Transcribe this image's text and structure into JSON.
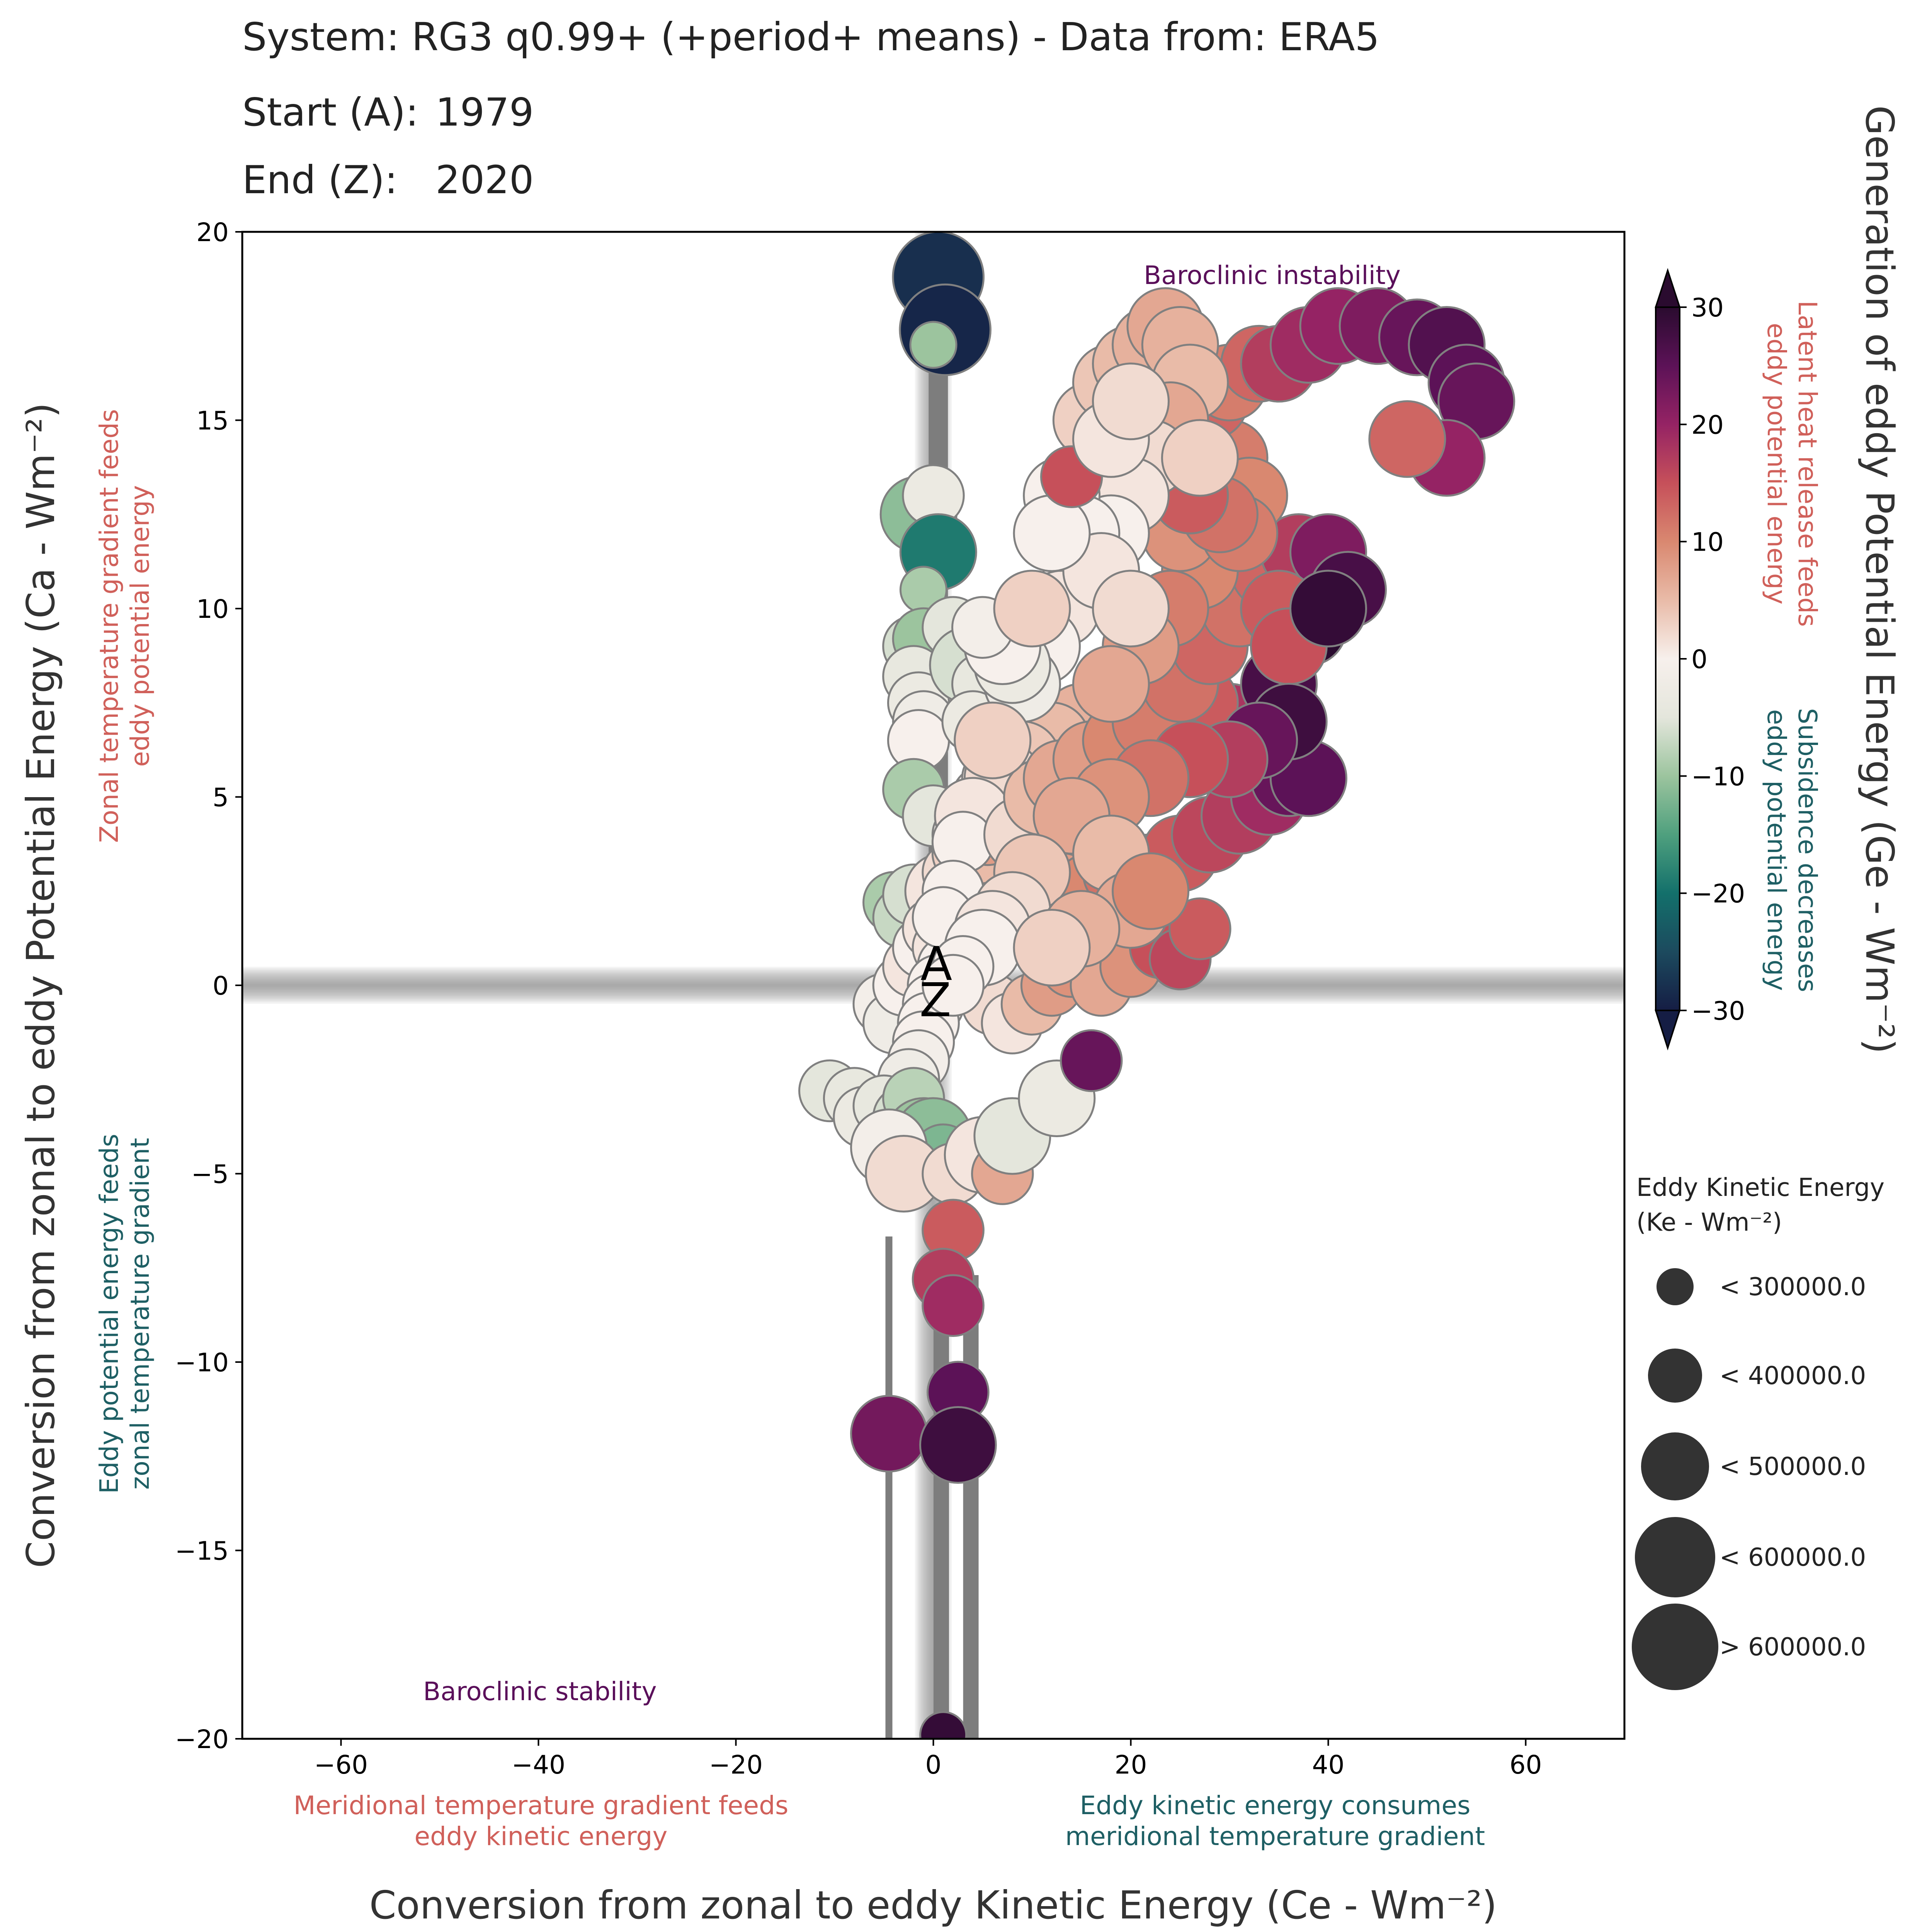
{
  "header": {
    "title": "System: RG3 q0.99+ (+period+ means) - Data from: ERA5",
    "start_label": "Start (A):",
    "start_value": "1979",
    "end_label": "End (Z):",
    "end_value": "2020"
  },
  "colors": {
    "accent_red": "#d0605a",
    "accent_teal": "#1e5f64",
    "purple": "#5a0f5a",
    "axis": "#000000",
    "marker_edge": "#808080"
  },
  "annotations": {
    "top": "Baroclinic instability",
    "bottom": "Baroclinic stability",
    "left_upper": [
      "Zonal temperature gradient feeds",
      "eddy potential energy"
    ],
    "left_lower": [
      "Eddy potential energy feeds",
      "zonal temperature gradient"
    ],
    "bottom_left": [
      "Meridional temperature gradient feeds",
      "eddy kinetic energy"
    ],
    "bottom_right": [
      "Eddy kinetic energy consumes",
      "meridional temperature gradient"
    ],
    "cbar_upper": [
      "Latent heat release feeds",
      "eddy potential energy"
    ],
    "cbar_lower": [
      "Subsidence decreases",
      "eddy potential energy"
    ]
  },
  "chart_data": {
    "type": "scatter",
    "xlabel": "Conversion from zonal to eddy Kinetic Energy (Ce - Wm⁻²)",
    "ylabel": "Conversion from zonal to eddy Potential Energy (Ca - Wm⁻²)",
    "xlim": [
      -70,
      70
    ],
    "ylim": [
      -20,
      20
    ],
    "xticks": [
      -60,
      -40,
      -20,
      0,
      20,
      40,
      60
    ],
    "yticks": [
      -20,
      -15,
      -10,
      -5,
      0,
      5,
      10,
      15,
      20
    ],
    "colorbar": {
      "label": "Generation of eddy Potential Energy (Ge - Wm⁻²)",
      "min": -30,
      "max": 30,
      "ticks": [
        -30,
        -20,
        -10,
        0,
        10,
        20,
        30
      ],
      "stops": [
        "#151d44",
        "#1c4a5e",
        "#13706b",
        "#4fa07e",
        "#9cc49e",
        "#e4e6dc",
        "#f7f0ec",
        "#e9bba8",
        "#d98870",
        "#c6505a",
        "#952364",
        "#5c1257",
        "#2a0b2f"
      ]
    },
    "size_legend": {
      "title": "Eddy Kinetic Energy",
      "subtitle": "(Ke - Wm⁻²)",
      "entries": [
        "< 300000.0",
        "< 400000.0",
        "< 500000.0",
        "< 600000.0",
        "> 600000.0"
      ]
    },
    "markers": {
      "start": "A",
      "end": "Z",
      "start_xy": [
        0.3,
        0.3
      ],
      "end_xy": [
        0.2,
        -0.1
      ]
    },
    "series": [
      {
        "points": [
          [
            0.5,
            18.8,
            -28,
            3
          ],
          [
            1.2,
            17.4,
            -29,
            3
          ],
          [
            0.0,
            17.0,
            -10,
            0
          ],
          [
            -1.5,
            12.5,
            -11,
            2
          ],
          [
            0.0,
            13.0,
            -3,
            1
          ],
          [
            0.5,
            11.5,
            -19,
            2
          ],
          [
            -1.0,
            10.5,
            -9,
            0
          ],
          [
            -2.0,
            9.0,
            -6,
            1
          ],
          [
            -1.0,
            9.2,
            -10,
            1
          ],
          [
            2.0,
            9.5,
            -5,
            1
          ],
          [
            -2.0,
            8.2,
            -4,
            1
          ],
          [
            -1.5,
            7.5,
            -3,
            1
          ],
          [
            -1.0,
            7.0,
            -2,
            1
          ],
          [
            -1.5,
            6.5,
            0,
            1
          ],
          [
            3.5,
            8.5,
            -6,
            2
          ],
          [
            5.0,
            8.0,
            -4,
            1
          ],
          [
            4.0,
            7.0,
            -3,
            1
          ],
          [
            -2.0,
            5.2,
            -9,
            1
          ],
          [
            0.0,
            4.5,
            -5,
            1
          ],
          [
            3.0,
            4.0,
            -2,
            1
          ],
          [
            5.0,
            5.0,
            0,
            1
          ],
          [
            6.0,
            5.5,
            1,
            1
          ],
          [
            7.0,
            4.5,
            2,
            1
          ],
          [
            -4.0,
            2.2,
            -9,
            1
          ],
          [
            -3.0,
            1.8,
            -7,
            1
          ],
          [
            -2.0,
            2.4,
            -6,
            1
          ],
          [
            1.0,
            2.5,
            1,
            2
          ],
          [
            2.0,
            3.0,
            2,
            1
          ],
          [
            3.0,
            3.5,
            3,
            1
          ],
          [
            4.5,
            3.5,
            5,
            1
          ],
          [
            5.5,
            4.0,
            8,
            1
          ],
          [
            -5.0,
            -0.5,
            -1,
            1
          ],
          [
            -4.0,
            -1.0,
            -2,
            1
          ],
          [
            -3.0,
            0.0,
            0,
            1
          ],
          [
            -2.0,
            0.5,
            1,
            1
          ],
          [
            -1.0,
            1.0,
            0,
            1
          ],
          [
            0.0,
            1.5,
            1,
            1
          ],
          [
            1.0,
            1.0,
            1,
            1
          ],
          [
            1.5,
            0.5,
            0,
            1
          ],
          [
            0.5,
            0.0,
            0,
            1
          ],
          [
            0.0,
            -0.5,
            0,
            1
          ],
          [
            -0.5,
            -1.0,
            0,
            1
          ],
          [
            -1.0,
            -1.5,
            0,
            1
          ],
          [
            -1.5,
            -2.0,
            -1,
            1
          ],
          [
            -2.5,
            -2.5,
            -2,
            1
          ],
          [
            -10.5,
            -2.8,
            -5,
            1
          ],
          [
            -8.0,
            -3.0,
            -4,
            1
          ],
          [
            -7.0,
            -3.5,
            -3,
            1
          ],
          [
            -5.0,
            -3.2,
            -4,
            1
          ],
          [
            -3.0,
            -3.5,
            -6,
            1
          ],
          [
            -2.0,
            -3.0,
            -8,
            1
          ],
          [
            -1.0,
            -4.0,
            -10,
            2
          ],
          [
            0.0,
            -4.0,
            -11,
            2
          ],
          [
            1.0,
            -4.5,
            -12,
            1
          ],
          [
            -4.5,
            -4.3,
            -1,
            2
          ],
          [
            -3.0,
            -5.0,
            2,
            2
          ],
          [
            2.0,
            -5.0,
            2,
            1
          ],
          [
            5.0,
            -4.5,
            1,
            2
          ],
          [
            7.0,
            -5.0,
            7,
            1
          ],
          [
            8.0,
            -4.0,
            -5,
            2
          ],
          [
            12.5,
            -3.0,
            -3,
            2
          ],
          [
            16.0,
            -2.0,
            24,
            1
          ],
          [
            2.0,
            -6.5,
            14,
            1
          ],
          [
            1.0,
            -7.8,
            17,
            1
          ],
          [
            2.0,
            -8.5,
            19,
            1
          ],
          [
            -4.5,
            -11.9,
            23,
            2
          ],
          [
            2.5,
            -10.8,
            25,
            1
          ],
          [
            2.5,
            -12.2,
            28,
            2
          ],
          [
            1.0,
            -19.9,
            29,
            0
          ],
          [
            4.0,
            0.0,
            3,
            1
          ],
          [
            6.0,
            -0.5,
            2,
            1
          ],
          [
            8.0,
            -1.0,
            1,
            1
          ],
          [
            10.0,
            -0.5,
            5,
            1
          ],
          [
            12.0,
            0.0,
            8,
            1
          ],
          [
            14.0,
            0.5,
            9,
            1
          ],
          [
            17.0,
            0.0,
            7,
            1
          ],
          [
            20.0,
            0.5,
            9,
            1
          ],
          [
            23.0,
            1.0,
            15,
            1
          ],
          [
            25.0,
            0.7,
            16,
            1
          ],
          [
            27.0,
            1.5,
            14,
            1
          ],
          [
            10.0,
            2.0,
            6,
            2
          ],
          [
            13.0,
            2.5,
            8,
            2
          ],
          [
            16.0,
            2.5,
            10,
            2
          ],
          [
            19.0,
            3.0,
            12,
            2
          ],
          [
            22.0,
            3.0,
            13,
            2
          ],
          [
            25.0,
            3.5,
            14,
            2
          ],
          [
            28.0,
            4.0,
            16,
            2
          ],
          [
            31.0,
            4.5,
            17,
            2
          ],
          [
            34.0,
            5.0,
            19,
            2
          ],
          [
            36.0,
            5.5,
            24,
            2
          ],
          [
            38.0,
            5.5,
            25,
            2
          ],
          [
            32.0,
            6.5,
            22,
            2
          ],
          [
            30.0,
            7.0,
            18,
            2
          ],
          [
            27.0,
            7.5,
            14,
            2
          ],
          [
            24.0,
            7.8,
            12,
            2
          ],
          [
            21.0,
            8.0,
            10,
            2
          ],
          [
            18.0,
            7.5,
            8,
            2
          ],
          [
            15.0,
            7.0,
            6,
            2
          ],
          [
            12.0,
            6.5,
            5,
            2
          ],
          [
            9.0,
            6.0,
            4,
            2
          ],
          [
            7.0,
            5.5,
            2,
            2
          ],
          [
            4.0,
            4.5,
            1,
            2
          ],
          [
            3.0,
            3.8,
            0,
            1
          ],
          [
            2.0,
            2.5,
            0,
            1
          ],
          [
            1.0,
            1.8,
            0,
            1
          ],
          [
            9.0,
            4.0,
            2,
            2
          ],
          [
            11.0,
            5.0,
            5,
            2
          ],
          [
            13.0,
            5.5,
            7,
            2
          ],
          [
            16.0,
            6.0,
            8,
            2
          ],
          [
            19.0,
            6.5,
            10,
            2
          ],
          [
            22.0,
            7.0,
            11,
            2
          ],
          [
            25.0,
            8.0,
            12,
            2
          ],
          [
            28.0,
            9.0,
            13,
            2
          ],
          [
            31.0,
            10.0,
            12,
            2
          ],
          [
            34.0,
            11.0,
            13,
            2
          ],
          [
            37.0,
            11.5,
            17,
            2
          ],
          [
            40.0,
            11.5,
            22,
            2
          ],
          [
            42.0,
            10.5,
            27,
            2
          ],
          [
            38.0,
            9.5,
            30,
            2
          ],
          [
            35.0,
            8.0,
            27,
            2
          ],
          [
            27.0,
            11.0,
            10,
            2
          ],
          [
            24.0,
            10.0,
            11,
            2
          ],
          [
            21.0,
            9.0,
            8,
            2
          ],
          [
            18.0,
            8.0,
            7,
            2
          ],
          [
            25.0,
            12.0,
            9,
            2
          ],
          [
            28.0,
            13.5,
            10,
            2
          ],
          [
            30.0,
            14.0,
            11,
            2
          ],
          [
            32.0,
            13.0,
            10,
            2
          ],
          [
            31.0,
            12.0,
            11,
            2
          ],
          [
            29.0,
            12.5,
            12,
            2
          ],
          [
            26.0,
            13.0,
            14,
            2
          ],
          [
            28.0,
            15.5,
            13,
            2
          ],
          [
            30.0,
            16.0,
            11,
            2
          ],
          [
            33.0,
            16.5,
            13,
            2
          ],
          [
            35.0,
            16.5,
            17,
            2
          ],
          [
            38.0,
            17.0,
            19,
            2
          ],
          [
            41.0,
            17.5,
            20,
            2
          ],
          [
            45.0,
            17.5,
            22,
            2
          ],
          [
            49.0,
            17.2,
            24,
            2
          ],
          [
            52.0,
            17.0,
            26,
            2
          ],
          [
            54.0,
            16.0,
            25,
            2
          ],
          [
            55.0,
            15.5,
            24,
            2
          ],
          [
            52.0,
            14.0,
            20,
            2
          ],
          [
            48.0,
            14.5,
            13,
            2
          ],
          [
            16.0,
            15.0,
            3,
            2
          ],
          [
            18.0,
            16.0,
            4,
            2
          ],
          [
            20.0,
            16.5,
            5,
            2
          ],
          [
            22.0,
            17.0,
            6,
            2
          ],
          [
            23.5,
            17.5,
            7,
            2
          ],
          [
            25.0,
            17.0,
            6,
            2
          ],
          [
            26.0,
            16.0,
            5,
            2
          ],
          [
            24.0,
            15.0,
            7,
            2
          ],
          [
            22.0,
            14.0,
            2,
            2
          ],
          [
            20.0,
            13.0,
            1,
            2
          ],
          [
            18.0,
            12.0,
            0,
            2
          ],
          [
            15.0,
            11.0,
            0,
            2
          ],
          [
            13.0,
            10.0,
            1,
            2
          ],
          [
            11.0,
            9.0,
            0,
            2
          ],
          [
            9.0,
            8.0,
            -2,
            2
          ],
          [
            13.0,
            13.0,
            0,
            2
          ],
          [
            15.0,
            12.0,
            0,
            2
          ],
          [
            17.0,
            11.0,
            1,
            2
          ],
          [
            20.0,
            10.0,
            2,
            2
          ],
          [
            6.0,
            6.5,
            3,
            2
          ],
          [
            8.0,
            8.5,
            -3,
            2
          ],
          [
            7.0,
            9.0,
            0,
            2
          ],
          [
            5.0,
            9.5,
            -1,
            1
          ],
          [
            10.0,
            10.0,
            3,
            2
          ],
          [
            12.0,
            12.0,
            0,
            2
          ],
          [
            14.0,
            13.5,
            15,
            1
          ],
          [
            18.0,
            14.5,
            1,
            2
          ],
          [
            20.0,
            15.5,
            2,
            2
          ],
          [
            27.0,
            14.0,
            3,
            2
          ],
          [
            35.0,
            10.0,
            14,
            2
          ],
          [
            36.0,
            9.0,
            15,
            2
          ],
          [
            40.0,
            10.0,
            29,
            2
          ],
          [
            36.0,
            7.0,
            28,
            2
          ],
          [
            33.0,
            6.5,
            24,
            2
          ],
          [
            30.0,
            6.0,
            17,
            2
          ],
          [
            26.0,
            6.0,
            15,
            2
          ],
          [
            22.0,
            5.5,
            12,
            2
          ],
          [
            18.0,
            5.0,
            9,
            2
          ],
          [
            14.0,
            4.5,
            7,
            2
          ],
          [
            10.0,
            3.0,
            4,
            2
          ],
          [
            8.0,
            2.0,
            2,
            2
          ],
          [
            6.0,
            1.5,
            1,
            2
          ],
          [
            5.0,
            1.0,
            0,
            2
          ],
          [
            3.0,
            0.5,
            0,
            1
          ],
          [
            2.0,
            0.0,
            0,
            1
          ],
          [
            18.0,
            3.5,
            5,
            2
          ],
          [
            20.0,
            2.0,
            7,
            2
          ],
          [
            15.0,
            1.5,
            6,
            2
          ],
          [
            12.0,
            1.0,
            3,
            2
          ],
          [
            22.0,
            2.5,
            10,
            2
          ]
        ]
      }
    ]
  }
}
